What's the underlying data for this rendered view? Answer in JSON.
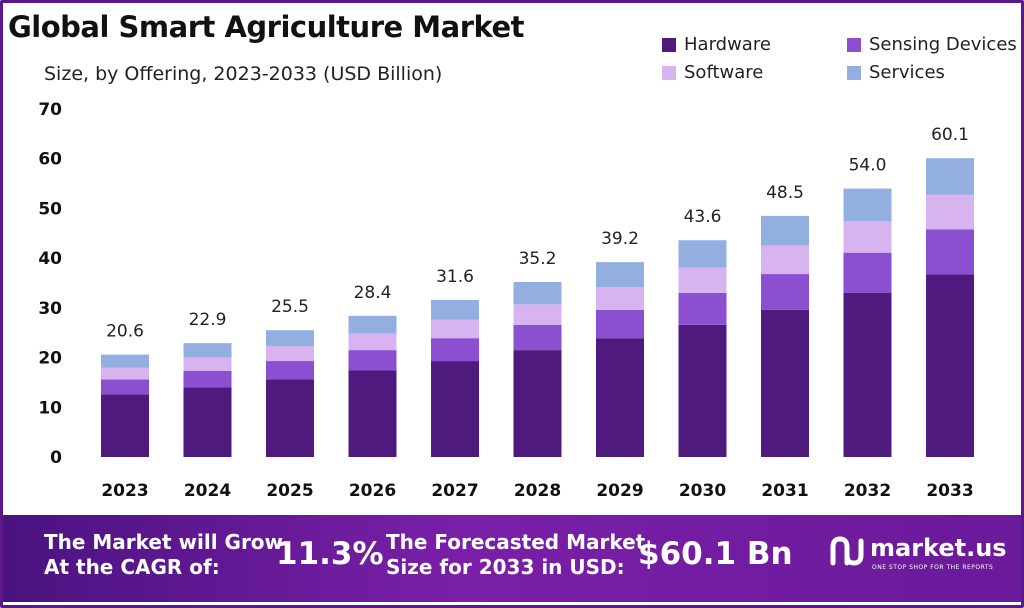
{
  "chart_data": {
    "type": "bar",
    "stacked": true,
    "title": "Global Smart Agriculture Market",
    "subtitle": "Size, by Offering, 2023-2033 (USD Billion)",
    "categories": [
      "2023",
      "2024",
      "2025",
      "2026",
      "2027",
      "2028",
      "2029",
      "2030",
      "2031",
      "2032",
      "2033"
    ],
    "series": [
      {
        "name": "Hardware",
        "color": "#4e1a7d",
        "values": [
          12.6,
          14.0,
          15.6,
          17.4,
          19.3,
          21.5,
          23.9,
          26.6,
          29.6,
          33.0,
          36.7
        ]
      },
      {
        "name": "Sensing Devices",
        "color": "#8b4fd0",
        "values": [
          3.0,
          3.3,
          3.7,
          4.1,
          4.6,
          5.1,
          5.7,
          6.4,
          7.2,
          8.1,
          9.1
        ]
      },
      {
        "name": "Software",
        "color": "#d7b4f0",
        "values": [
          2.4,
          2.7,
          3.0,
          3.3,
          3.7,
          4.1,
          4.6,
          5.1,
          5.7,
          6.3,
          7.0
        ]
      },
      {
        "name": "Services",
        "color": "#92afe0",
        "values": [
          2.6,
          2.9,
          3.2,
          3.6,
          4.0,
          4.5,
          5.0,
          5.5,
          6.0,
          6.6,
          7.3
        ]
      }
    ],
    "totals": [
      "20.6",
      "22.9",
      "25.5",
      "28.4",
      "31.6",
      "35.2",
      "39.2",
      "43.6",
      "48.5",
      "54.0",
      "60.1"
    ],
    "yticks": [
      "0",
      "10",
      "20",
      "30",
      "40",
      "50",
      "60",
      "70"
    ],
    "ylim": [
      0,
      70
    ],
    "grid": false,
    "legend_position": "top-right"
  },
  "banner": {
    "cagr_line1": "The Market will Grow",
    "cagr_line2": "At the CAGR of:",
    "cagr_value": "11.3%",
    "forecast_line1": "The Forecasted Market",
    "forecast_line2": "Size for 2033 in USD:",
    "forecast_value": "$60.1 Bn",
    "brand_name": "market.us",
    "brand_tagline": "ONE STOP SHOP FOR THE REPORTS"
  }
}
